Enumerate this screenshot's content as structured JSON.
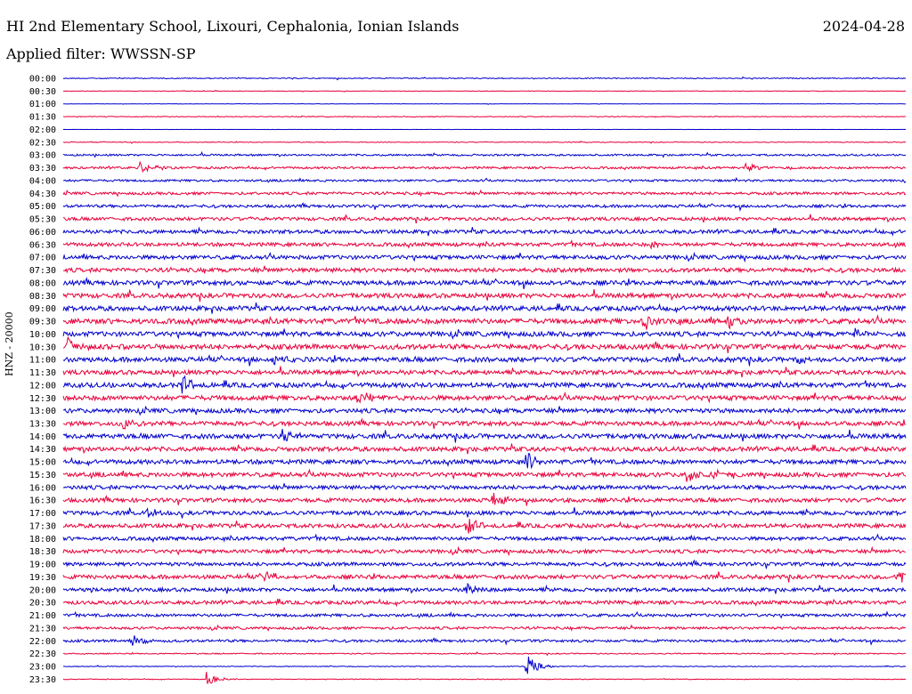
{
  "header": {
    "station": "HI 2nd Elementary School, Lixouri, Cephalonia, Ionian Islands",
    "date": "2024-04-28",
    "filter": "Applied filter: WWSSN-SP"
  },
  "colors": {
    "even_row": "#0000cc",
    "odd_row": "#e8003a"
  },
  "chart_data": {
    "type": "line",
    "title": "HI 2nd Elementary School, Lixouri, Cephalonia, Ionian Islands",
    "ylabel": "HNZ - 20000",
    "xlabel": "",
    "row_labels": [
      "00:00",
      "00:30",
      "01:00",
      "01:30",
      "02:00",
      "02:30",
      "03:00",
      "03:30",
      "04:00",
      "04:30",
      "05:00",
      "05:30",
      "06:00",
      "06:30",
      "07:00",
      "07:30",
      "08:00",
      "08:30",
      "09:00",
      "09:30",
      "10:00",
      "10:30",
      "11:00",
      "11:30",
      "12:00",
      "12:30",
      "13:00",
      "13:30",
      "14:00",
      "14:30",
      "15:00",
      "15:30",
      "16:00",
      "16:30",
      "17:00",
      "17:30",
      "18:00",
      "18:30",
      "19:00",
      "19:30",
      "20:00",
      "20:30",
      "21:00",
      "21:30",
      "22:00",
      "22:30",
      "23:00",
      "23:30"
    ],
    "noise_level": [
      0.5,
      0.3,
      0.2,
      0.4,
      0.1,
      0.4,
      1.0,
      1.2,
      1.2,
      1.5,
      1.6,
      1.8,
      2.0,
      2.0,
      2.2,
      2.3,
      2.5,
      2.5,
      2.6,
      2.8,
      2.6,
      2.8,
      2.6,
      2.4,
      2.6,
      2.6,
      2.4,
      2.4,
      2.6,
      2.4,
      2.4,
      2.4,
      2.2,
      2.2,
      2.2,
      2.2,
      2.0,
      2.0,
      2.0,
      2.2,
      2.0,
      2.0,
      1.6,
      1.4,
      1.4,
      0.6,
      0.4,
      0.4
    ],
    "events": [
      [],
      [],
      [],
      [],
      [],
      [],
      [],
      [
        {
          "t": 0.09,
          "amp": 9
        },
        {
          "t": 0.81,
          "amp": 7
        }
      ],
      [],
      [],
      [],
      [],
      [],
      [
        {
          "t": 0.7,
          "amp": 6
        }
      ],
      [],
      [],
      [],
      [],
      [],
      [
        {
          "t": 0.69,
          "amp": 11
        },
        {
          "t": 0.79,
          "amp": 10
        }
      ],
      [
        {
          "t": 0.94,
          "amp": 6
        }
      ],
      [
        {
          "t": 0.005,
          "amp": 12
        }
      ],
      [
        {
          "t": 0.25,
          "amp": 6
        },
        {
          "t": 0.87,
          "amp": 7
        }
      ],
      [],
      [
        {
          "t": 0.14,
          "amp": 13
        }
      ],
      [
        {
          "t": 0.35,
          "amp": 10
        }
      ],
      [],
      [
        {
          "t": 0.07,
          "amp": 7
        }
      ],
      [
        {
          "t": 0.26,
          "amp": 10
        }
      ],
      [],
      [
        {
          "t": 0.55,
          "amp": 12
        }
      ],
      [
        {
          "t": 0.74,
          "amp": 11
        }
      ],
      [],
      [
        {
          "t": 0.51,
          "amp": 11
        }
      ],
      [
        {
          "t": 0.1,
          "amp": 5
        }
      ],
      [
        {
          "t": 0.48,
          "amp": 12
        }
      ],
      [],
      [],
      [],
      [
        {
          "t": 0.24,
          "amp": 8
        },
        {
          "t": 0.99,
          "amp": 10
        }
      ],
      [
        {
          "t": 0.48,
          "amp": 12
        }
      ],
      [],
      [],
      [],
      [
        {
          "t": 0.08,
          "amp": 10
        }
      ],
      [],
      [
        {
          "t": 0.55,
          "amp": 15
        }
      ],
      [
        {
          "t": 0.17,
          "amp": 9
        }
      ]
    ]
  }
}
